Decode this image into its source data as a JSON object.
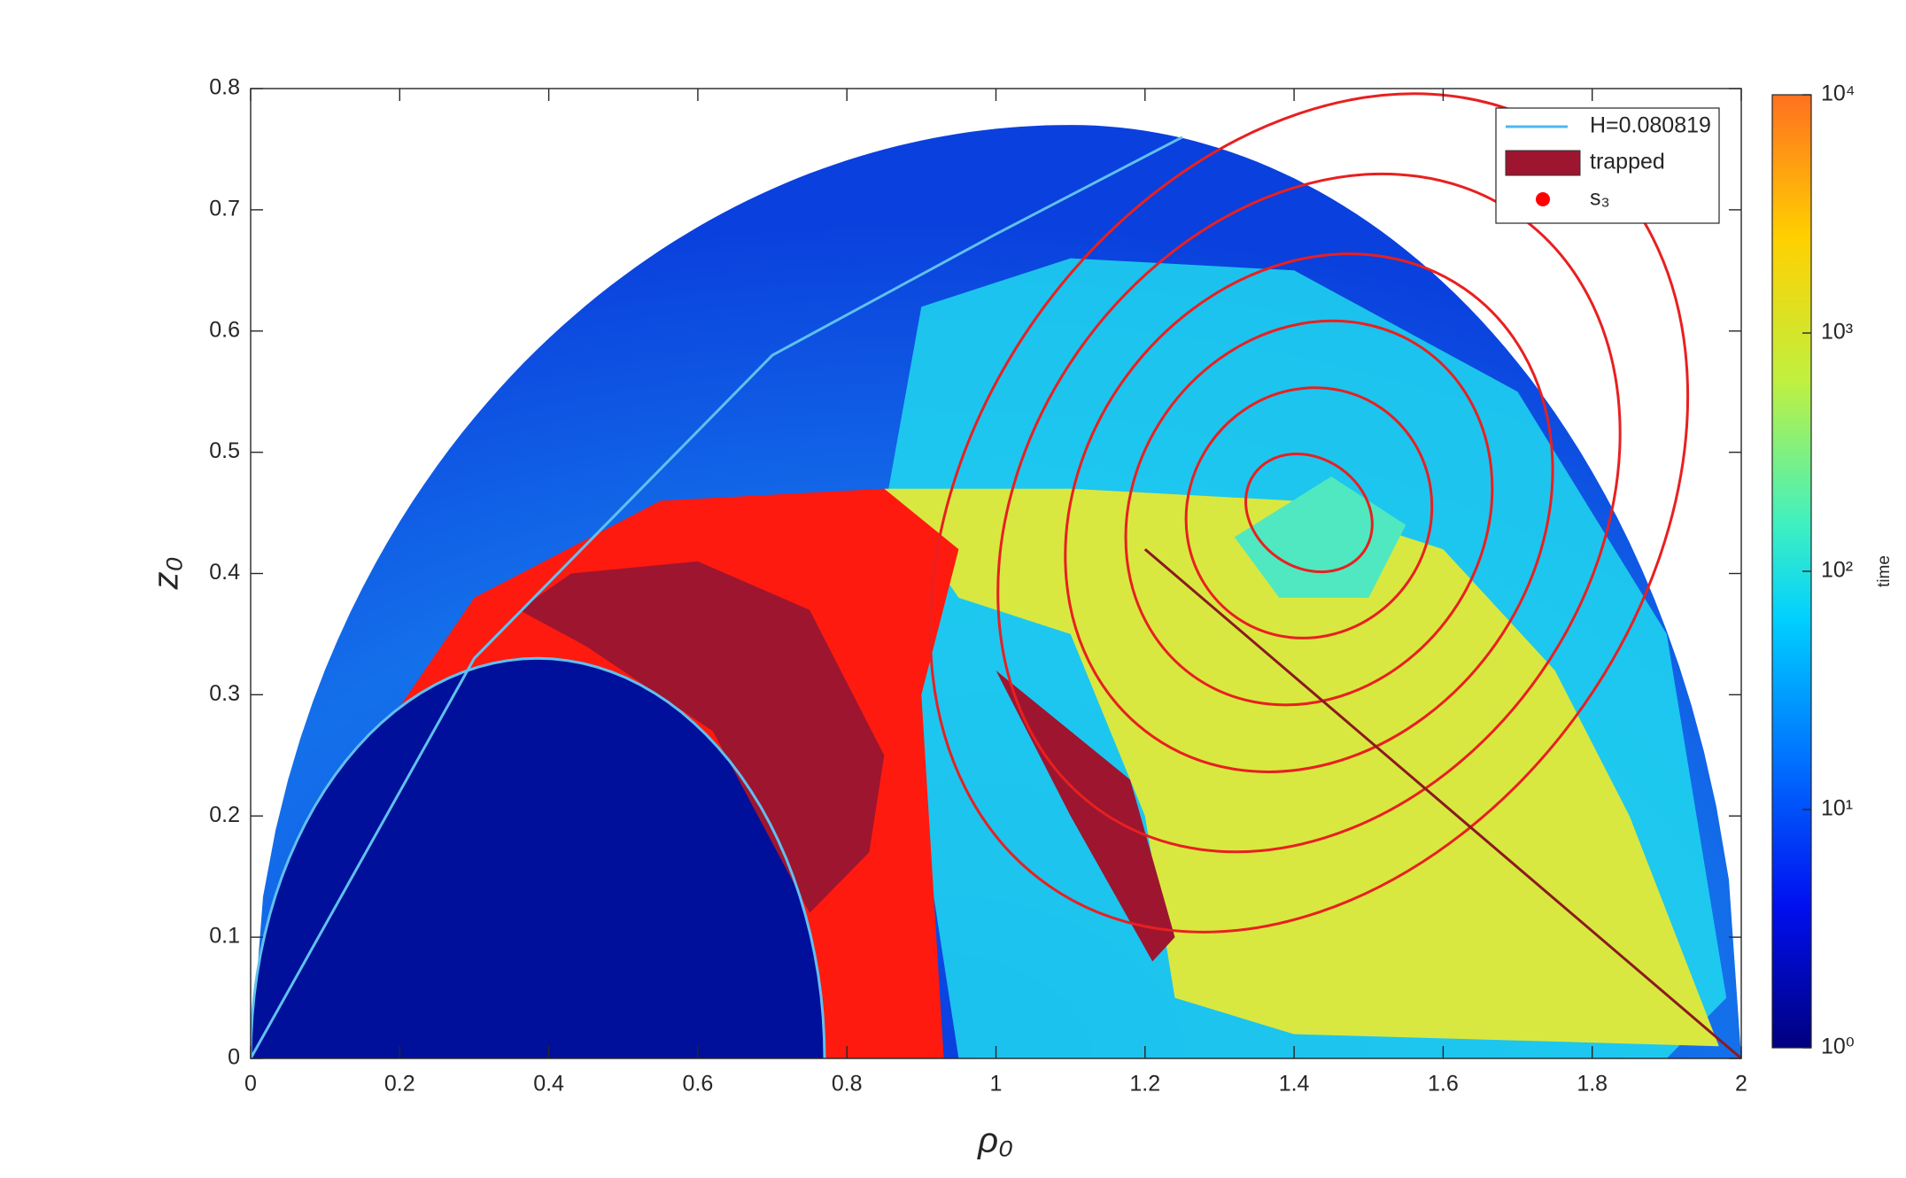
{
  "chart_data": {
    "type": "heatmap",
    "x_label": "ρ₀",
    "y_label": "z₀",
    "colorbar_label": "time",
    "xlim": [
      0,
      2
    ],
    "xticks": [
      0,
      0.2,
      0.4,
      0.6,
      0.8,
      1,
      1.2,
      1.4,
      1.6,
      1.8,
      2
    ],
    "ylim": [
      0,
      0.8
    ],
    "yticks": [
      0,
      0.1,
      0.2,
      0.3,
      0.4,
      0.5,
      0.6,
      0.7,
      0.8
    ],
    "clim": [
      1,
      10000
    ],
    "color_scale": "log",
    "cticks": [
      {
        "value": 1,
        "label": "10⁰"
      },
      {
        "value": 10,
        "label": "10¹"
      },
      {
        "value": 100,
        "label": "10²"
      },
      {
        "value": 1000,
        "label": "10³"
      },
      {
        "value": 10000,
        "label": "10⁴"
      }
    ],
    "legend": {
      "position": "upper right",
      "entries": [
        {
          "name": "H=0.080819",
          "color": "#4db8f0",
          "kind": "line"
        },
        {
          "name": "trapped",
          "color": "#9e1530",
          "kind": "patch"
        },
        {
          "name": "s₃",
          "color": "#ff0000",
          "kind": "dot"
        }
      ]
    }
  }
}
